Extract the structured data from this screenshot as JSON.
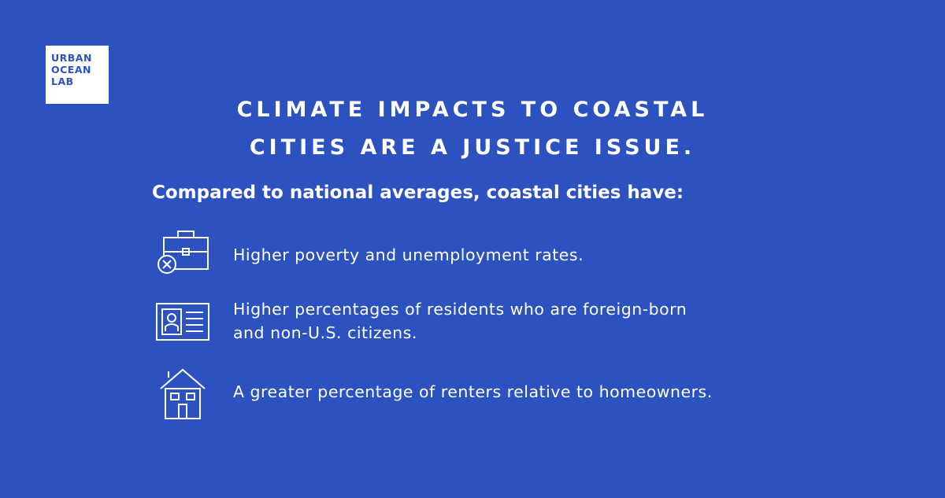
{
  "logo": {
    "lines": [
      "URBAN",
      "OCEAN",
      "LAB"
    ]
  },
  "title": {
    "lines": [
      "CLIMATE IMPACTS TO COASTAL",
      "CITIES ARE A JUSTICE ISSUE."
    ]
  },
  "intro": "Compared to national averages, coastal cities have:",
  "items": [
    {
      "lines": [
        "Higher poverty and unemployment rates."
      ]
    },
    {
      "lines": [
        "Higher percentages of residents who are foreign-born",
        "and non-U.S. citizens."
      ]
    },
    {
      "lines": [
        "A greater percentage of renters relative to homeowners."
      ]
    }
  ]
}
